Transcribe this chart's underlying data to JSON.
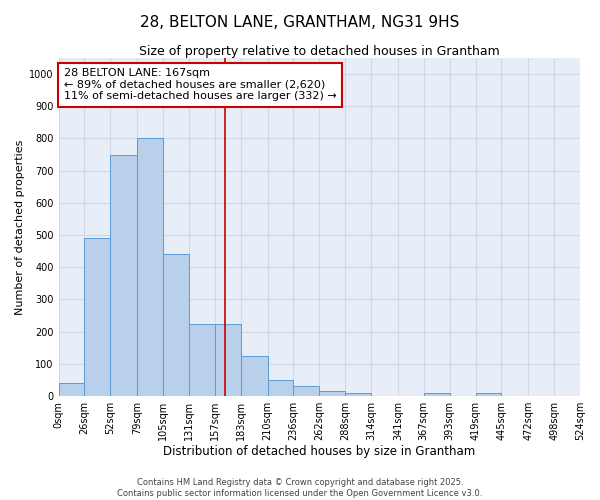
{
  "title": "28, BELTON LANE, GRANTHAM, NG31 9HS",
  "subtitle": "Size of property relative to detached houses in Grantham",
  "xlabel": "Distribution of detached houses by size in Grantham",
  "ylabel": "Number of detached properties",
  "bin_edges": [
    0,
    26,
    52,
    79,
    105,
    131,
    157,
    183,
    210,
    236,
    262,
    288,
    314,
    341,
    367,
    393,
    419,
    445,
    472,
    498,
    524
  ],
  "bar_heights": [
    40,
    490,
    750,
    800,
    440,
    225,
    225,
    125,
    50,
    30,
    15,
    10,
    0,
    0,
    10,
    0,
    10,
    0,
    0,
    0
  ],
  "bar_color": "#b8d0ea",
  "bar_edgecolor": "#5b9bd5",
  "bar_linewidth": 0.7,
  "vline_x": 167,
  "vline_color": "#cc0000",
  "vline_linewidth": 1.2,
  "annotation_text": "28 BELTON LANE: 167sqm\n← 89% of detached houses are smaller (2,620)\n11% of semi-detached houses are larger (332) →",
  "annotation_box_edgecolor": "#cc0000",
  "annotation_fontsize": 8,
  "tick_labels": [
    "0sqm",
    "26sqm",
    "52sqm",
    "79sqm",
    "105sqm",
    "131sqm",
    "157sqm",
    "183sqm",
    "210sqm",
    "236sqm",
    "262sqm",
    "288sqm",
    "314sqm",
    "341sqm",
    "367sqm",
    "393sqm",
    "419sqm",
    "445sqm",
    "472sqm",
    "498sqm",
    "524sqm"
  ],
  "ylim": [
    0,
    1050
  ],
  "yticks": [
    0,
    100,
    200,
    300,
    400,
    500,
    600,
    700,
    800,
    900,
    1000
  ],
  "background_color": "#e8eef8",
  "grid_color": "#d0d8e8",
  "footer_line1": "Contains HM Land Registry data © Crown copyright and database right 2025.",
  "footer_line2": "Contains public sector information licensed under the Open Government Licence v3.0.",
  "title_fontsize": 11,
  "subtitle_fontsize": 9,
  "xlabel_fontsize": 8.5,
  "ylabel_fontsize": 8,
  "tick_fontsize": 7,
  "footer_fontsize": 6
}
